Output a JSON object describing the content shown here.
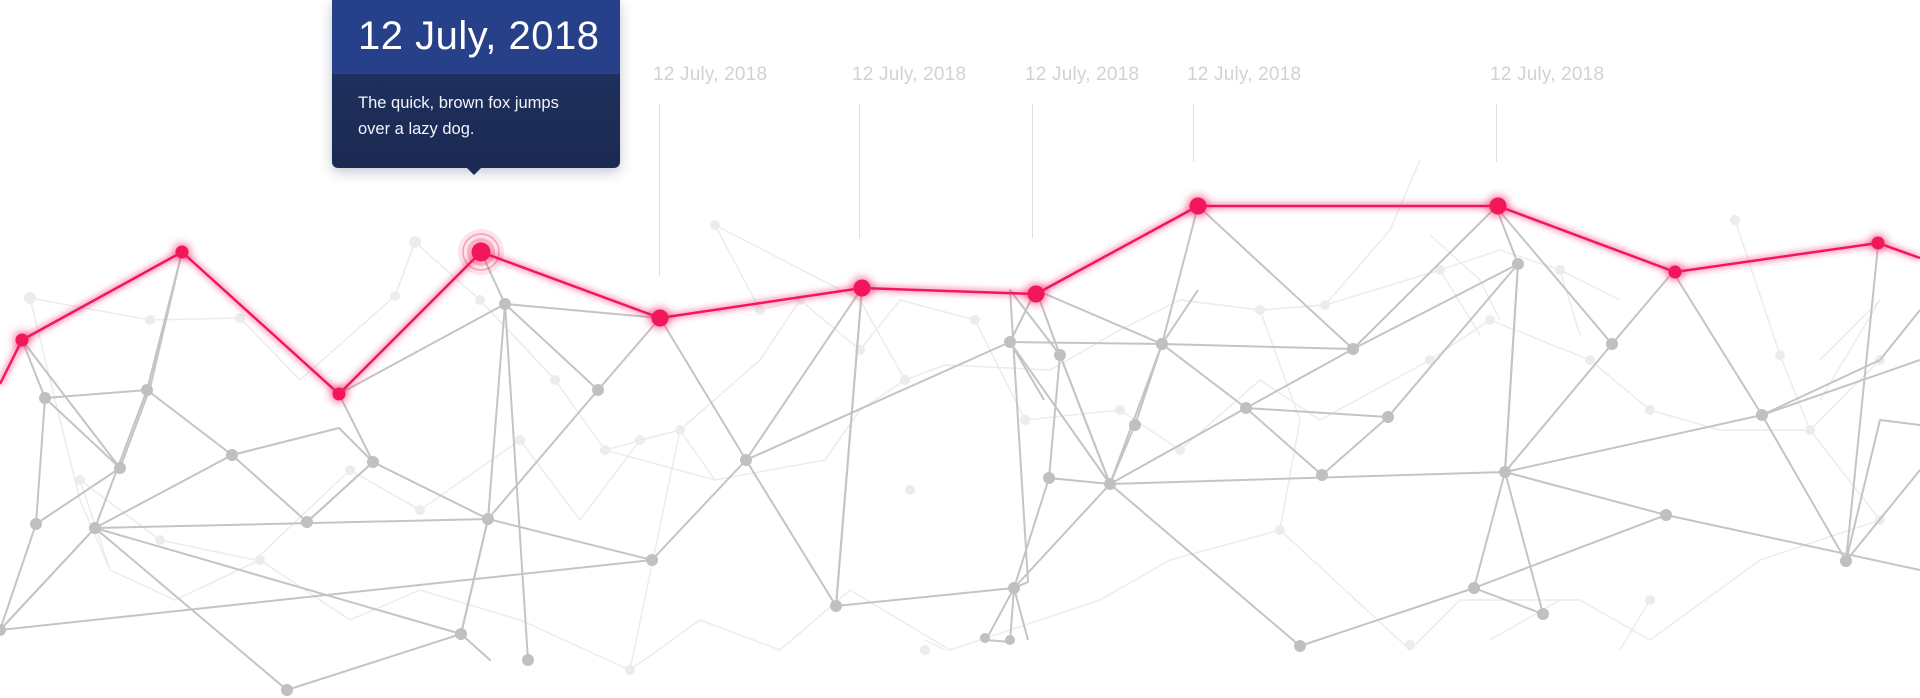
{
  "tooltip": {
    "title": "12 July, 2018",
    "body": "The quick, brown fox jumps over a lazy dog."
  },
  "timeline_labels": [
    "12 July, 2018",
    "12 July, 2018",
    "12 July, 2018",
    "12 July, 2018",
    "12 July, 2018"
  ],
  "colors": {
    "highlight_line": "#f2175a",
    "network_line": "#c4c4c4",
    "network_line_faint": "#ececec",
    "network_node": "#c0c0c0",
    "tooltip_header": "#27408a",
    "tooltip_body": "#1c2b54",
    "date_label": "#d2d2d2"
  }
}
